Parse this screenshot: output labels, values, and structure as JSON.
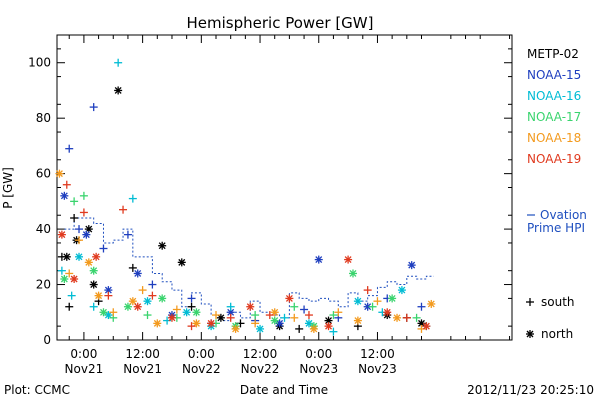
{
  "chart_data": {
    "type": "scatter",
    "title": "Hemispheric Power [GW]",
    "ylabel": "P [GW]",
    "xlabel": "Date and Time",
    "ylim": [
      0,
      110
    ],
    "yticks": [
      0,
      20,
      40,
      60,
      80,
      100
    ],
    "xlim_hours": [
      -5.5,
      87.5
    ],
    "xticks": [
      {
        "h": 0,
        "time": "0:00",
        "date": "Nov21"
      },
      {
        "h": 12,
        "time": "12:00",
        "date": "Nov21"
      },
      {
        "h": 24,
        "time": "0:00",
        "date": "Nov22"
      },
      {
        "h": 36,
        "time": "12:00",
        "date": "Nov22"
      },
      {
        "h": 48,
        "time": "0:00",
        "date": "Nov23"
      },
      {
        "h": 60,
        "time": "12:00",
        "date": "Nov23"
      }
    ],
    "legend": {
      "placement": "right",
      "symbols": [
        {
          "marker": "+",
          "label": "south"
        },
        {
          "marker": "*",
          "label": "north"
        }
      ]
    },
    "series": [
      {
        "name": "METP-02",
        "color": "#000000",
        "points": [
          [
            -4.5,
            30,
            "+"
          ],
          [
            -3.5,
            30,
            "*"
          ],
          [
            -3,
            12,
            "+"
          ],
          [
            -2,
            44,
            "+"
          ],
          [
            -1.5,
            36,
            "*"
          ],
          [
            1,
            40,
            "*"
          ],
          [
            2,
            20,
            "*"
          ],
          [
            3,
            14,
            "+"
          ],
          [
            7,
            90,
            "*"
          ],
          [
            10,
            26,
            "+"
          ],
          [
            16,
            34,
            "*"
          ],
          [
            20,
            28,
            "*"
          ],
          [
            22,
            12,
            "+"
          ],
          [
            28,
            8,
            "*"
          ],
          [
            32,
            6,
            "+"
          ],
          [
            40,
            5,
            "*"
          ],
          [
            44,
            4,
            "+"
          ],
          [
            50,
            7,
            "*"
          ],
          [
            56,
            5,
            "+"
          ],
          [
            62,
            9,
            "*"
          ],
          [
            66,
            8,
            "+"
          ],
          [
            69,
            6,
            "*"
          ]
        ]
      },
      {
        "name": "NOAA-15",
        "color": "#1f3fbf",
        "points": [
          [
            -4,
            52,
            "*"
          ],
          [
            -3,
            69,
            "+"
          ],
          [
            -1,
            40,
            "+"
          ],
          [
            0.5,
            38,
            "*"
          ],
          [
            2,
            84,
            "+"
          ],
          [
            4,
            33,
            "+"
          ],
          [
            5,
            18,
            "*"
          ],
          [
            9,
            38,
            "+"
          ],
          [
            11,
            24,
            "*"
          ],
          [
            14,
            20,
            "+"
          ],
          [
            18,
            9,
            "*"
          ],
          [
            22,
            15,
            "+"
          ],
          [
            26,
            6,
            "+"
          ],
          [
            30,
            10,
            "*"
          ],
          [
            35,
            7,
            "+"
          ],
          [
            40,
            6,
            "*"
          ],
          [
            45,
            11,
            "+"
          ],
          [
            48,
            29,
            "*"
          ],
          [
            52,
            8,
            "+"
          ],
          [
            58,
            12,
            "*"
          ],
          [
            62,
            15,
            "+"
          ],
          [
            67,
            27,
            "*"
          ],
          [
            69,
            12,
            "+"
          ]
        ]
      },
      {
        "name": "NOAA-16",
        "color": "#00bcd4",
        "points": [
          [
            -4.5,
            25,
            "+"
          ],
          [
            -2.5,
            16,
            "+"
          ],
          [
            -1,
            30,
            "*"
          ],
          [
            2,
            12,
            "+"
          ],
          [
            5,
            9,
            "*"
          ],
          [
            7,
            100,
            "+"
          ],
          [
            10,
            51,
            "+"
          ],
          [
            13,
            14,
            "*"
          ],
          [
            17,
            7,
            "+"
          ],
          [
            21,
            10,
            "*"
          ],
          [
            26,
            5,
            "*"
          ],
          [
            30,
            12,
            "+"
          ],
          [
            36,
            4,
            "*"
          ],
          [
            41,
            8,
            "+"
          ],
          [
            46,
            6,
            "*"
          ],
          [
            51,
            3,
            "+"
          ],
          [
            56,
            14,
            "*"
          ],
          [
            61,
            10,
            "+"
          ],
          [
            65,
            18,
            "*"
          ],
          [
            70,
            5,
            "+"
          ]
        ]
      },
      {
        "name": "NOAA-17",
        "color": "#3ad46e",
        "points": [
          [
            -4,
            22,
            "*"
          ],
          [
            -2,
            50,
            "+"
          ],
          [
            0,
            52,
            "+"
          ],
          [
            2,
            25,
            "*"
          ],
          [
            4,
            10,
            "*"
          ],
          [
            6,
            8,
            "+"
          ],
          [
            9,
            12,
            "*"
          ],
          [
            13,
            9,
            "+"
          ],
          [
            16,
            15,
            "*"
          ],
          [
            19,
            8,
            "+"
          ],
          [
            23,
            10,
            "*"
          ],
          [
            27,
            6,
            "+"
          ],
          [
            31,
            5,
            "*"
          ],
          [
            35,
            9,
            "+"
          ],
          [
            39,
            7,
            "*"
          ],
          [
            43,
            12,
            "+"
          ],
          [
            47,
            5,
            "*"
          ],
          [
            51,
            9,
            "+"
          ],
          [
            55,
            24,
            "*"
          ],
          [
            59,
            12,
            "+"
          ],
          [
            63,
            15,
            "*"
          ],
          [
            68,
            8,
            "+"
          ]
        ]
      },
      {
        "name": "NOAA-18",
        "color": "#f39a1e",
        "points": [
          [
            -5,
            60,
            "*"
          ],
          [
            -3,
            24,
            "+"
          ],
          [
            -1,
            36,
            "+"
          ],
          [
            1,
            28,
            "*"
          ],
          [
            3,
            16,
            "*"
          ],
          [
            6,
            10,
            "+"
          ],
          [
            10,
            14,
            "*"
          ],
          [
            12,
            18,
            "+"
          ],
          [
            15,
            6,
            "*"
          ],
          [
            19,
            11,
            "+"
          ],
          [
            23,
            6,
            "*"
          ],
          [
            27,
            9,
            "+"
          ],
          [
            31,
            4,
            "*"
          ],
          [
            35,
            6,
            "+"
          ],
          [
            39,
            10,
            "*"
          ],
          [
            43,
            8,
            "+"
          ],
          [
            47,
            4,
            "*"
          ],
          [
            52,
            10,
            "+"
          ],
          [
            56,
            7,
            "*"
          ],
          [
            60,
            14,
            "+"
          ],
          [
            64,
            8,
            "*"
          ],
          [
            69,
            4,
            "+"
          ],
          [
            71,
            13,
            "*"
          ]
        ]
      },
      {
        "name": "NOAA-19",
        "color": "#e03a1f",
        "points": [
          [
            -4.5,
            38,
            "*"
          ],
          [
            -3.5,
            56,
            "+"
          ],
          [
            -2,
            22,
            "*"
          ],
          [
            0,
            46,
            "+"
          ],
          [
            2.5,
            30,
            "*"
          ],
          [
            5,
            16,
            "+"
          ],
          [
            8,
            47,
            "+"
          ],
          [
            11,
            12,
            "*"
          ],
          [
            14,
            16,
            "+"
          ],
          [
            18,
            8,
            "*"
          ],
          [
            22,
            5,
            "+"
          ],
          [
            26,
            6,
            "*"
          ],
          [
            30,
            8,
            "+"
          ],
          [
            34,
            12,
            "*"
          ],
          [
            38,
            9,
            "+"
          ],
          [
            42,
            15,
            "*"
          ],
          [
            46,
            9,
            "+"
          ],
          [
            50,
            5,
            "*"
          ],
          [
            54,
            29,
            "*"
          ],
          [
            58,
            18,
            "+"
          ],
          [
            62,
            10,
            "*"
          ],
          [
            66,
            8,
            "+"
          ],
          [
            70,
            5,
            "*"
          ]
        ]
      }
    ],
    "ovation": {
      "name": "Ovation Prime HPI",
      "color": "#1f4fbf",
      "points": [
        [
          -4,
          40
        ],
        [
          -2,
          44
        ],
        [
          0,
          44
        ],
        [
          2,
          42
        ],
        [
          4,
          35
        ],
        [
          6,
          36
        ],
        [
          8,
          40
        ],
        [
          10,
          30
        ],
        [
          12,
          30
        ],
        [
          14,
          24
        ],
        [
          16,
          21
        ],
        [
          18,
          18
        ],
        [
          20,
          12
        ],
        [
          22,
          17
        ],
        [
          24,
          13
        ],
        [
          26,
          9
        ],
        [
          28,
          7
        ],
        [
          30,
          10
        ],
        [
          32,
          8
        ],
        [
          34,
          14
        ],
        [
          36,
          10
        ],
        [
          38,
          9
        ],
        [
          40,
          8
        ],
        [
          42,
          17
        ],
        [
          44,
          15
        ],
        [
          46,
          14
        ],
        [
          48,
          15
        ],
        [
          50,
          14
        ],
        [
          52,
          12
        ],
        [
          54,
          17
        ],
        [
          56,
          14
        ],
        [
          58,
          16
        ],
        [
          60,
          19
        ],
        [
          62,
          21
        ],
        [
          64,
          20
        ],
        [
          66,
          23
        ],
        [
          68,
          22
        ],
        [
          70,
          23
        ],
        [
          71.5,
          23
        ]
      ]
    }
  },
  "footer": {
    "left": "Plot: CCMC",
    "right": "2012/11/23 20:25:10"
  }
}
